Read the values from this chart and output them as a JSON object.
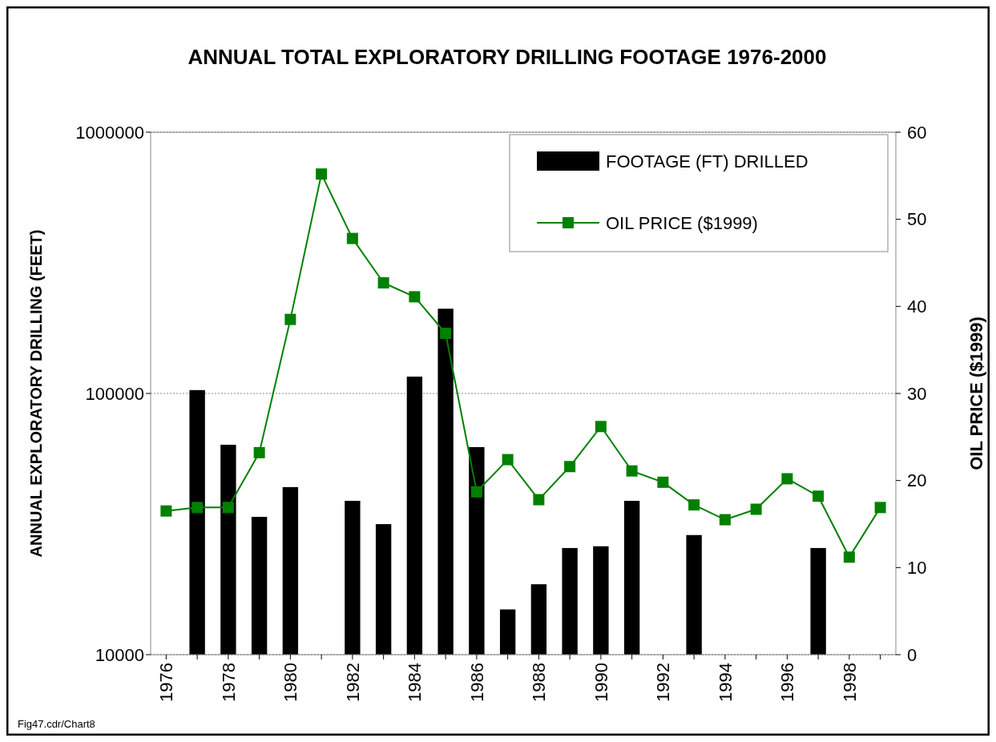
{
  "chart_data": {
    "type": "bar",
    "title": "ANNUAL TOTAL EXPLORATORY DRILLING FOOTAGE 1976-2000",
    "ylabel": "ANNUAL EXPLORATORY DRILLING (FEET)",
    "y2label": "OIL PRICE ($1999)",
    "annotations": [
      "Fig47.cdr/Chart8"
    ],
    "categories": [
      "1976",
      null,
      "1978",
      null,
      "1980",
      null,
      "1982",
      null,
      "1984",
      null,
      "1986",
      null,
      "1988",
      null,
      "1990",
      null,
      "1992",
      null,
      "1994",
      null,
      "1996",
      null,
      "1998",
      null
    ],
    "series": [
      {
        "name": "FOOTAGE (FT) DRILLED",
        "color": "#000000",
        "values": [
          null,
          103000,
          63600,
          33700,
          43800,
          null,
          38800,
          31600,
          116000,
          211000,
          62300,
          14900,
          18600,
          25600,
          26000,
          38800,
          null,
          28700,
          null,
          null,
          null,
          25600,
          null,
          null
        ]
      },
      {
        "name": "OIL PRICE ($1999)",
        "type": "line",
        "axis": "y2",
        "color": "#008000",
        "marker": "square",
        "values": [
          16.5,
          16.9,
          16.9,
          23.2,
          38.5,
          55.2,
          47.8,
          42.7,
          41.1,
          36.9,
          18.7,
          22.4,
          17.8,
          21.6,
          26.2,
          21.1,
          19.8,
          17.2,
          15.5,
          16.7,
          20.2,
          18.2,
          11.2,
          16.9
        ]
      }
    ],
    "log": "y",
    "ylim": [
      10000,
      1000000
    ],
    "yticks": [
      10000,
      100000,
      1000000
    ],
    "y2lim": [
      0,
      60
    ],
    "y2ticks": [
      0,
      10,
      20,
      30,
      40,
      50,
      60
    ],
    "grid": "y",
    "legend": "top right"
  }
}
